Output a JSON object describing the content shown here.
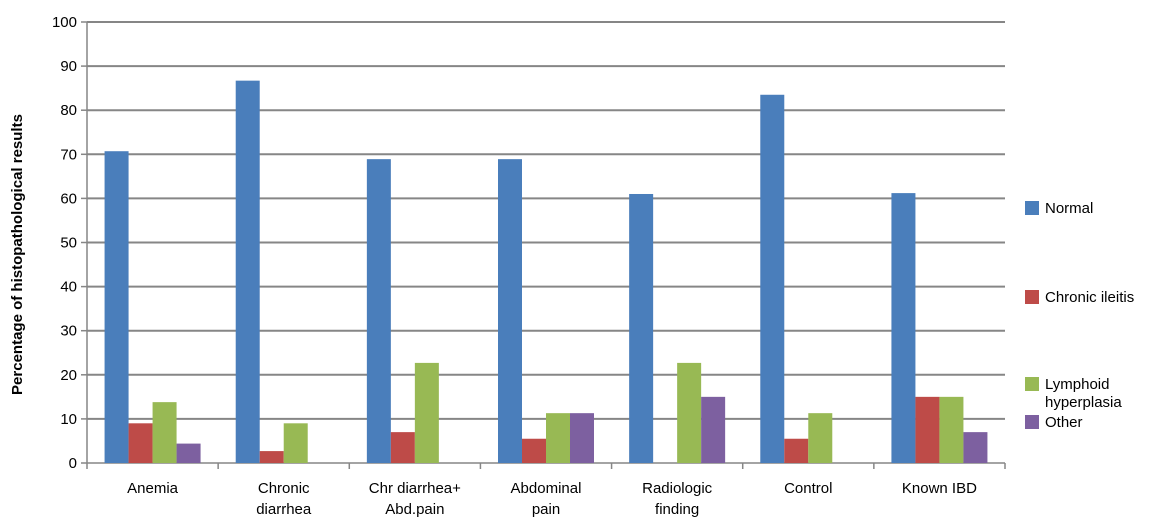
{
  "chart_data": {
    "type": "bar",
    "title": "",
    "xlabel": "",
    "ylabel": "Percentage of histopathological results",
    "ylim": [
      0,
      100
    ],
    "yticks": [
      0,
      10,
      20,
      30,
      40,
      50,
      60,
      70,
      80,
      90,
      100
    ],
    "grid": true,
    "legend_position": "right",
    "categories": [
      [
        "Anemia"
      ],
      [
        "Chronic",
        "diarrhea"
      ],
      [
        "Chr diarrhea+",
        "Abd.pain"
      ],
      [
        "Abdominal",
        "pain"
      ],
      [
        "Radiologic",
        "finding"
      ],
      [
        "Control"
      ],
      [
        "Known IBD"
      ]
    ],
    "series": [
      {
        "name": "Normal",
        "legend_lines": [
          "Normal"
        ],
        "color": "#4a7ebb",
        "values": [
          70.7,
          86.7,
          68.9,
          68.9,
          61.0,
          83.5,
          61.2
        ]
      },
      {
        "name": "Chronic ileitis",
        "legend_lines": [
          "Chronic ileitis"
        ],
        "color": "#be4b48",
        "values": [
          9.0,
          2.7,
          7.0,
          5.5,
          0,
          5.5,
          15.0
        ]
      },
      {
        "name": "Lymphoid hyperplasia",
        "legend_lines": [
          "Lymphoid",
          "hyperplasia"
        ],
        "color": "#98b954",
        "values": [
          13.8,
          9.0,
          22.7,
          11.3,
          22.7,
          11.3,
          15.0
        ]
      },
      {
        "name": "Other",
        "legend_lines": [
          "Other"
        ],
        "color": "#7d60a0",
        "values": [
          4.4,
          0,
          0,
          11.3,
          15.0,
          0,
          7.0
        ]
      }
    ]
  }
}
